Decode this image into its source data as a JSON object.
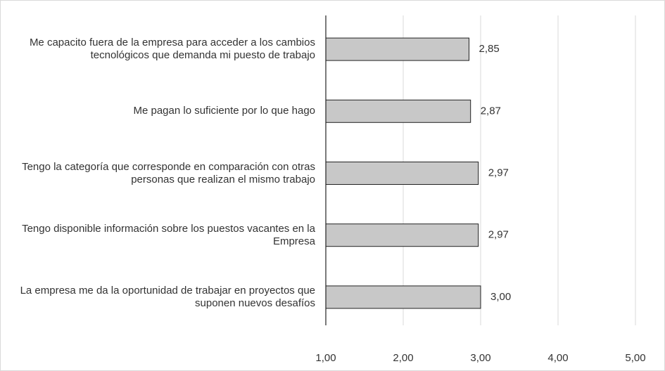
{
  "chart_data": {
    "type": "barh",
    "categories": [
      "Me capacito fuera de la empresa para acceder a los cambios tecnológicos que demanda mi puesto de trabajo",
      "Me pagan lo suficiente por lo que hago",
      "Tengo la categoría que corresponde en comparación con otras personas que realizan el mismo trabajo",
      "Tengo disponible información sobre los puestos vacantes en la Empresa",
      "La empresa me da la oportunidad de trabajar en proyectos que suponen nuevos desafíos"
    ],
    "values": [
      2.85,
      2.87,
      2.97,
      2.97,
      3.0
    ],
    "value_labels": [
      "2,85",
      "2,87",
      "2,97",
      "2,97",
      "3,00"
    ],
    "color": "#c8c8c8",
    "xlim": [
      1,
      5
    ],
    "xticks": [
      {
        "value": 1,
        "label": "1,00"
      },
      {
        "value": 2,
        "label": "2,00"
      },
      {
        "value": 3,
        "label": "3,00"
      },
      {
        "value": 4,
        "label": "4,00"
      },
      {
        "value": 5,
        "label": "5,00"
      }
    ],
    "grid": true
  }
}
